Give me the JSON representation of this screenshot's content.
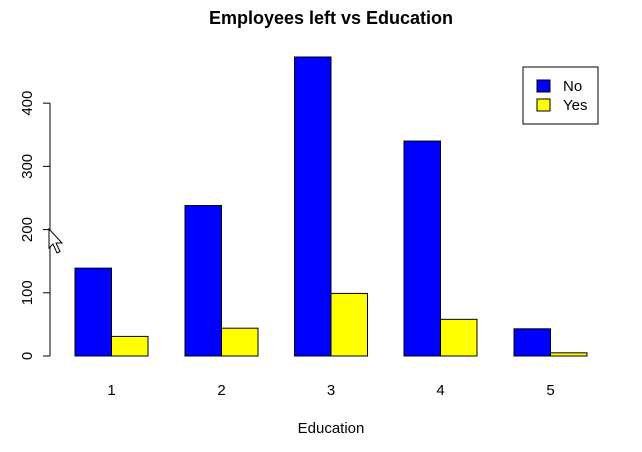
{
  "chart_data": {
    "type": "bar",
    "title": "Employees left vs Education",
    "xlabel": "Education",
    "ylabel": "",
    "categories": [
      "1",
      "2",
      "3",
      "4",
      "5"
    ],
    "series": [
      {
        "name": "No",
        "color": "#0000ff",
        "values": [
          139,
          238,
          473,
          340,
          43
        ]
      },
      {
        "name": "Yes",
        "color": "#ffff00",
        "values": [
          31,
          44,
          99,
          58,
          5
        ]
      }
    ],
    "ylim": [
      0,
      473
    ],
    "yticks": [
      "0",
      "100",
      "200",
      "300",
      "400"
    ],
    "grid": false,
    "legend_position": "top-right"
  }
}
